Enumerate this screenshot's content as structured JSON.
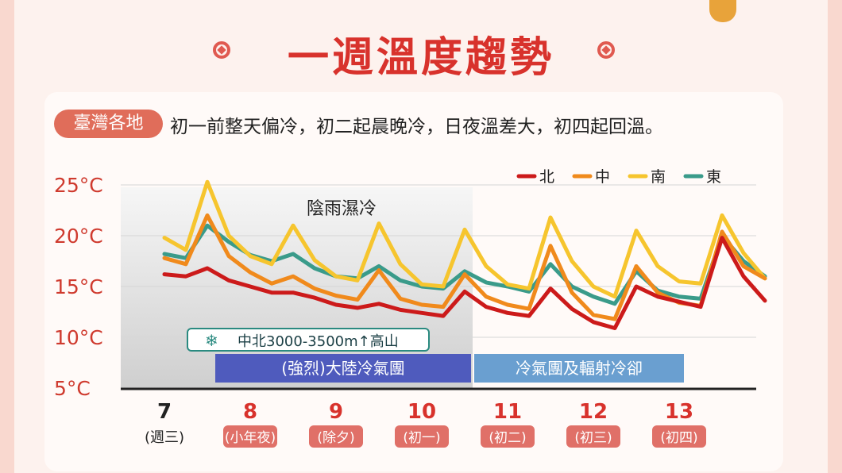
{
  "title": "一週溫度趨勢",
  "tag": "臺灣各地",
  "subtitle": "初一前整天偏冷，初二起晨晚冷，日夜溫差大，初四起回溫。",
  "colors": {
    "北": "#cc1a1a",
    "中": "#f08a1c",
    "南": "#f6c52e",
    "東": "#3a9b8a",
    "accent": "#d8322c"
  },
  "chart_data": {
    "type": "line",
    "yticks": [
      "25°C",
      "20°C",
      "15°C",
      "10°C",
      "5°C"
    ],
    "ylim": [
      5,
      25
    ],
    "x": [
      0,
      0.25,
      0.5,
      0.75,
      1,
      1.25,
      1.5,
      1.75,
      2,
      2.25,
      2.5,
      2.75,
      3,
      3.25,
      3.5,
      3.75,
      4,
      4.25,
      4.5,
      4.75,
      5,
      5.25,
      5.5,
      5.75,
      6,
      6.25,
      6.5,
      6.75,
      7
    ],
    "series": [
      {
        "name": "北",
        "values": [
          16.2,
          16.0,
          16.8,
          15.6,
          15.0,
          14.4,
          14.4,
          13.9,
          13.2,
          12.9,
          13.3,
          12.7,
          12.4,
          12.1,
          14.5,
          13.0,
          12.4,
          12.1,
          14.8,
          12.8,
          11.5,
          10.9,
          15.0,
          14.0,
          13.5,
          13.0,
          19.8,
          16.0,
          13.6
        ]
      },
      {
        "name": "中",
        "values": [
          17.8,
          17.2,
          22.0,
          18.0,
          16.4,
          15.3,
          16.0,
          14.8,
          14.1,
          13.7,
          16.6,
          13.8,
          13.2,
          13.0,
          16.2,
          14.0,
          13.2,
          12.8,
          19.0,
          14.4,
          12.2,
          11.8,
          17.0,
          14.4,
          13.4,
          13.1,
          20.4,
          17.0,
          15.8
        ]
      },
      {
        "name": "南",
        "values": [
          19.8,
          18.6,
          25.3,
          20.0,
          18.0,
          17.2,
          21.0,
          17.6,
          16.0,
          15.6,
          21.2,
          17.2,
          15.2,
          15.0,
          20.6,
          17.0,
          15.2,
          14.8,
          21.8,
          17.5,
          15.0,
          14.0,
          20.5,
          17.0,
          15.5,
          15.3,
          22.0,
          18.3,
          15.8
        ]
      },
      {
        "name": "東",
        "values": [
          18.2,
          17.8,
          21.0,
          19.4,
          18.1,
          17.5,
          18.2,
          16.8,
          16.0,
          15.8,
          17.0,
          15.6,
          15.0,
          14.8,
          16.5,
          15.4,
          15.0,
          14.5,
          17.2,
          15.0,
          14.0,
          13.3,
          16.5,
          14.6,
          14.0,
          13.8,
          20.0,
          17.5,
          16.0
        ]
      }
    ],
    "days": [
      {
        "date": "7",
        "label": "(週三)",
        "highlight": false
      },
      {
        "date": "8",
        "label": "(小年夜)",
        "highlight": true
      },
      {
        "date": "9",
        "label": "(除夕)",
        "highlight": true
      },
      {
        "date": "10",
        "label": "(初一)",
        "highlight": true
      },
      {
        "date": "11",
        "label": "(初二)",
        "highlight": true
      },
      {
        "date": "12",
        "label": "(初三)",
        "highlight": true
      },
      {
        "date": "13",
        "label": "(初四)",
        "highlight": true
      }
    ],
    "legend": [
      "北",
      "中",
      "南",
      "東"
    ],
    "legend_position": "top-right",
    "annotations": {
      "rain_region": "陰雨濕冷",
      "snow": "中北3000-3500m↑高山",
      "band1": "(強烈)大陸冷氣團",
      "band2": "冷氣團及輻射冷卻"
    }
  }
}
